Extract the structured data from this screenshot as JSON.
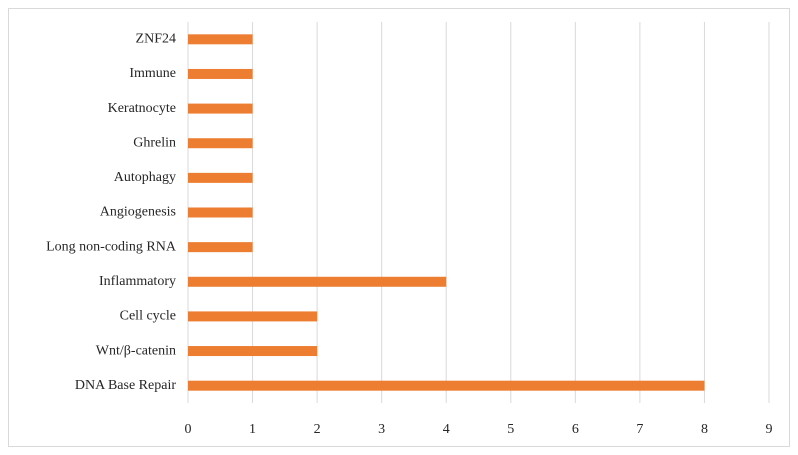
{
  "chart_data": {
    "type": "barh",
    "categories": [
      "ZNF24",
      "Immune",
      "Keratnocyte",
      "Ghrelin",
      "Autophagy",
      "Angiogenesis",
      "Long non-coding RNA",
      "Inflammatory",
      "Cell cycle",
      "Wnt/β-catenin",
      "DNA Base Repair"
    ],
    "values": [
      1,
      1,
      1,
      1,
      1,
      1,
      1,
      4,
      2,
      2,
      8
    ],
    "color": "#ed7d31",
    "xlim": [
      0,
      9
    ],
    "xticks": [
      0,
      1,
      2,
      3,
      4,
      5,
      6,
      7,
      8,
      9
    ],
    "grid": true
  }
}
